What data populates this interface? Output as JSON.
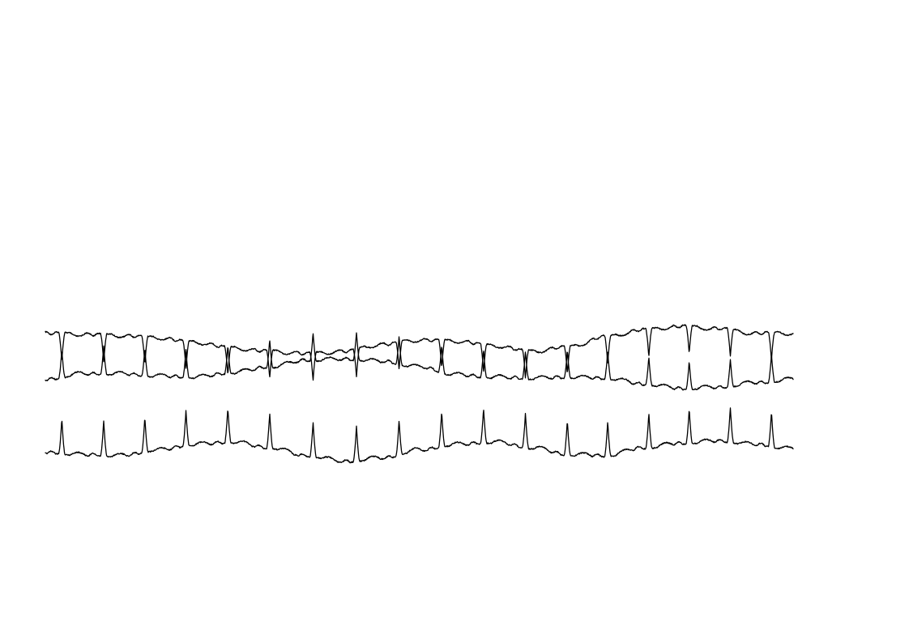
{
  "chart_data": {
    "type": "line",
    "grid": false,
    "legend": "none",
    "title": "",
    "xlabel": "",
    "ylabel": "",
    "line_color": "#000000",
    "background": "#ffffff",
    "series": [
      {
        "baseline": [
          [
            0,
            0.0
          ],
          [
            5,
            -0.05
          ],
          [
            10,
            -0.1
          ],
          [
            15,
            -0.2
          ],
          [
            20,
            -0.4
          ],
          [
            25,
            -0.65
          ],
          [
            30,
            -0.8
          ],
          [
            35,
            -0.9
          ],
          [
            40,
            -0.8
          ],
          [
            45,
            -0.5
          ],
          [
            50,
            -0.3
          ],
          [
            55,
            -0.35
          ],
          [
            60,
            -0.55
          ],
          [
            65,
            -0.8
          ],
          [
            70,
            -0.6
          ],
          [
            75,
            -0.15
          ],
          [
            80,
            0.15
          ],
          [
            85,
            0.3
          ],
          [
            90,
            0.2
          ],
          [
            95,
            0.0
          ],
          [
            100,
            0.0
          ]
        ],
        "r_peaks_pct": [
          2.2,
          7.8,
          13.3,
          18.8,
          24.4,
          30.0,
          35.8,
          41.6,
          47.3,
          53.0,
          58.6,
          64.2,
          69.8,
          75.2,
          80.7,
          86.1,
          91.6,
          97.1
        ],
        "r_amplitude": -0.8
      },
      {
        "baseline": [
          [
            0,
            0.0
          ],
          [
            5,
            0.25
          ],
          [
            10,
            0.25
          ],
          [
            15,
            0.15
          ],
          [
            20,
            0.1
          ],
          [
            25,
            0.3
          ],
          [
            30,
            0.55
          ],
          [
            35,
            0.85
          ],
          [
            40,
            0.9
          ],
          [
            45,
            0.8
          ],
          [
            50,
            0.55
          ],
          [
            55,
            0.2
          ],
          [
            60,
            0.1
          ],
          [
            65,
            0.05
          ],
          [
            70,
            0.1
          ],
          [
            75,
            0.05
          ],
          [
            80,
            -0.2
          ],
          [
            85,
            -0.4
          ],
          [
            90,
            -0.35
          ],
          [
            95,
            -0.15
          ],
          [
            100,
            0.0
          ]
        ],
        "r_peaks_pct": [
          2.2,
          7.8,
          13.3,
          18.8,
          24.4,
          30.0,
          35.8,
          41.6,
          47.3,
          53.0,
          58.6,
          64.2,
          69.8,
          75.2,
          80.7,
          86.1,
          91.6,
          97.1
        ],
        "r_amplitude": 0.8
      },
      {
        "baseline": [
          [
            0,
            0.0
          ],
          [
            5,
            -0.1
          ],
          [
            10,
            -0.15
          ],
          [
            15,
            0.1
          ],
          [
            20,
            0.35
          ],
          [
            25,
            0.45
          ],
          [
            30,
            0.2
          ],
          [
            35,
            -0.15
          ],
          [
            40,
            -0.4
          ],
          [
            45,
            -0.25
          ],
          [
            50,
            0.1
          ],
          [
            55,
            0.35
          ],
          [
            60,
            0.45
          ],
          [
            65,
            0.2
          ],
          [
            70,
            -0.1
          ],
          [
            75,
            -0.15
          ],
          [
            80,
            0.2
          ],
          [
            85,
            0.4
          ],
          [
            90,
            0.5
          ],
          [
            95,
            0.35
          ],
          [
            100,
            0.15
          ]
        ],
        "r_peaks_pct": [
          2.2,
          7.8,
          13.3,
          18.8,
          24.4,
          30.0,
          35.8,
          41.6,
          47.3,
          53.0,
          58.6,
          64.2,
          69.8,
          75.2,
          80.7,
          86.1,
          91.6,
          97.1
        ],
        "r_amplitude": 1.0
      }
    ]
  }
}
